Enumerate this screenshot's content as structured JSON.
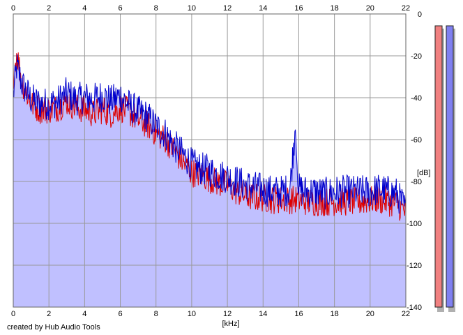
{
  "chart_data": {
    "type": "line",
    "title": "",
    "xlabel": "[kHz]",
    "ylabel": "[dB]",
    "xlim": [
      0,
      22
    ],
    "ylim": [
      -140,
      0
    ],
    "x_ticks": [
      0,
      2,
      4,
      6,
      8,
      10,
      12,
      14,
      16,
      18,
      20,
      22
    ],
    "y_ticks": [
      0,
      -20,
      -40,
      -60,
      -80,
      -100,
      -120,
      -140
    ],
    "x_tick_labels": [
      "0",
      "2",
      "4",
      "6",
      "8",
      "10",
      "12",
      "14",
      "16",
      "18",
      "20",
      "22"
    ],
    "y_tick_labels": [
      "0",
      "-20",
      "-40",
      "-60",
      "-80",
      "-100",
      "-120",
      "-140"
    ],
    "grid": true,
    "fill_color": "#c0c0ff",
    "series": [
      {
        "color": "#0000cc",
        "x": [
          0,
          0.2,
          0.5,
          1,
          1.5,
          2,
          2.5,
          3,
          3.5,
          4,
          4.5,
          5,
          5.5,
          6,
          6.5,
          7,
          7.5,
          8,
          8.5,
          9,
          9.5,
          10,
          10.5,
          11,
          11.5,
          12,
          12.5,
          13,
          13.5,
          14,
          14.5,
          15,
          15.5,
          15.8,
          16,
          16.5,
          17,
          17.5,
          18,
          18.5,
          19,
          19.5,
          20,
          20.5,
          21,
          21.5,
          22
        ],
        "y": [
          -38,
          -24,
          -33,
          -40,
          -42,
          -42,
          -41,
          -37,
          -40,
          -39,
          -40,
          -38,
          -41,
          -38,
          -43,
          -46,
          -48,
          -53,
          -56,
          -62,
          -66,
          -71,
          -73,
          -74,
          -76,
          -77,
          -79,
          -81,
          -82,
          -83,
          -84,
          -84,
          -83,
          -54,
          -83,
          -84,
          -84,
          -85,
          -84,
          -84,
          -84,
          -84,
          -84,
          -83,
          -84,
          -85,
          -93
        ]
      },
      {
        "color": "#dd0000",
        "x": [
          0,
          0.2,
          0.5,
          1,
          1.5,
          2,
          2.5,
          3,
          3.5,
          4,
          4.5,
          5,
          5.5,
          6,
          6.5,
          7,
          7.5,
          8,
          8.5,
          9,
          9.5,
          10,
          10.5,
          11,
          11.5,
          12,
          12.5,
          13,
          13.5,
          14,
          14.5,
          15,
          15.5,
          16,
          16.5,
          17,
          17.5,
          18,
          18.5,
          19,
          19.5,
          20,
          20.5,
          21,
          21.5,
          22
        ],
        "y": [
          -30,
          -18,
          -32,
          -42,
          -45,
          -45,
          -44,
          -41,
          -44,
          -45,
          -47,
          -45,
          -47,
          -44,
          -46,
          -50,
          -52,
          -56,
          -59,
          -64,
          -70,
          -75,
          -76,
          -78,
          -80,
          -81,
          -84,
          -86,
          -87,
          -87,
          -88,
          -88,
          -88,
          -88,
          -89,
          -89,
          -89,
          -89,
          -89,
          -89,
          -89,
          -88,
          -88,
          -89,
          -90,
          -94
        ]
      }
    ],
    "level_meters": [
      {
        "color": "#f08080"
      },
      {
        "color": "#8080f0"
      }
    ]
  },
  "footer": {
    "credit": "created by Hub Audio Tools"
  }
}
